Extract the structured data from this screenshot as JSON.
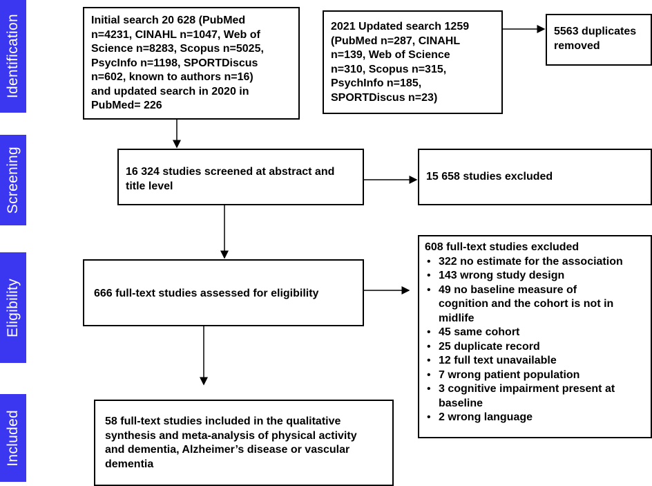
{
  "stages": [
    "Identification",
    "Screening",
    "Eligibility",
    "Included"
  ],
  "boxes": [
    {
      "lines": [
        "Initial search 20 628 (PubMed",
        "n=4231, CINAHL n=1047, Web of",
        "Science n=8283, Scopus n=5025,",
        "PsycInfo n=1198, SPORTDiscus",
        "n=602, known to authors n=16)",
        "and updated search in 2020 in",
        "PubMed= 226"
      ]
    },
    {
      "lines": [
        "2021 Updated search 1259",
        "(PubMed n=287, CINAHL",
        "n=139, Web of Science",
        "n=310, Scopus n=315,",
        "PsychInfo n=185,",
        "SPORTDiscus n=23)"
      ]
    },
    {
      "lines": [
        "5563 duplicates",
        "removed"
      ]
    },
    {
      "lines": [
        "16 324 studies screened at abstract and",
        "title level"
      ]
    },
    {
      "lines": [
        "15 658 studies excluded"
      ]
    },
    {
      "lines": [
        "666 full-text studies assessed for eligibility"
      ]
    },
    {
      "lines": [
        "58 full-text studies included in the qualitative",
        "synthesis and meta-analysis of physical activity",
        "and dementia, Alzheimer’s disease or vascular",
        "dementia"
      ]
    }
  ],
  "exclusions": {
    "title": "608 full-text studies excluded",
    "items": [
      [
        "322 no estimate for the association"
      ],
      [
        "143 wrong study design"
      ],
      [
        "49 no baseline measure of",
        "cognition and the cohort is not in",
        "midlife"
      ],
      [
        "45 same cohort"
      ],
      [
        "25 duplicate record"
      ],
      [
        "12 full text unavailable"
      ],
      [
        "7 wrong patient population"
      ],
      [
        "3 cognitive impairment present at",
        "baseline"
      ],
      [
        "2 wrong language"
      ]
    ]
  }
}
